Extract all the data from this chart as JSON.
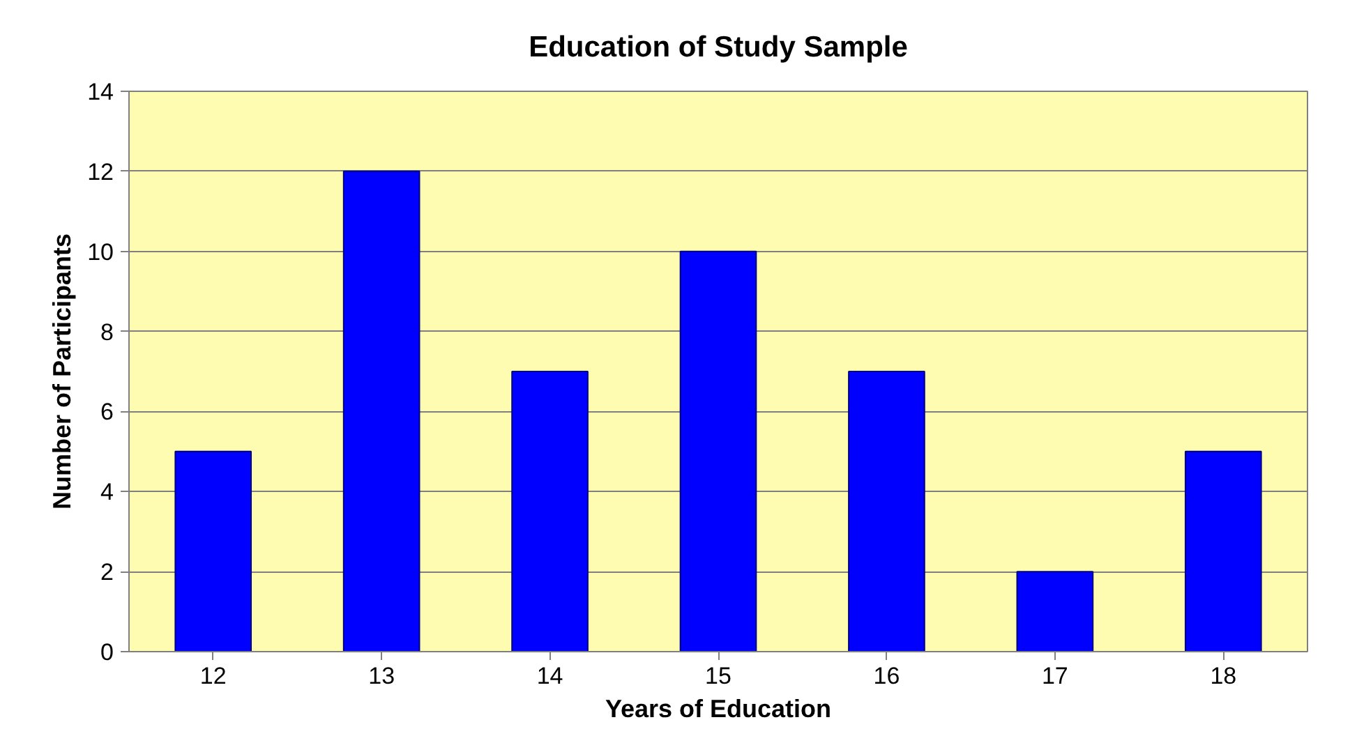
{
  "chart_data": {
    "type": "bar",
    "title": "Education of Study Sample",
    "xlabel": "Years of Education",
    "ylabel": "Number of Participants",
    "categories": [
      "12",
      "13",
      "14",
      "15",
      "16",
      "17",
      "18"
    ],
    "values": [
      5,
      12,
      7,
      10,
      7,
      2,
      5
    ],
    "color": "#0000ff",
    "ylim": [
      0,
      14
    ],
    "yticks": [
      0,
      2,
      4,
      6,
      8,
      10,
      12,
      14
    ],
    "grid": "y"
  }
}
